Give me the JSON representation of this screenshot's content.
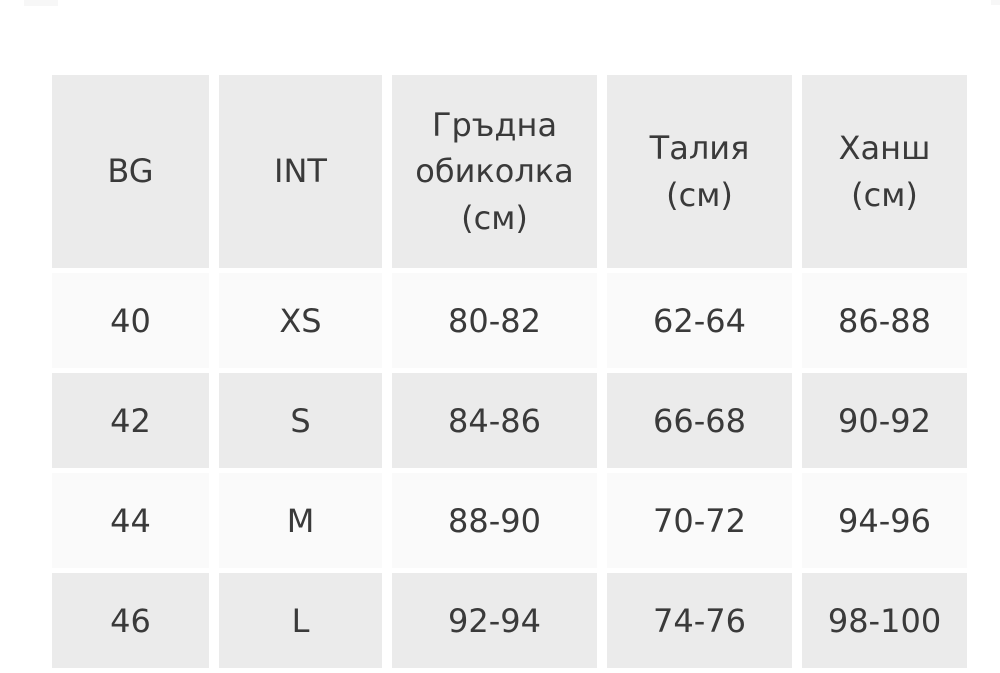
{
  "page": {
    "background_color": "#ffffff"
  },
  "size_chart": {
    "colors": {
      "header_bg": "#ebebeb",
      "row_light_bg": "#fafafa",
      "row_dark_bg": "#ebebeb",
      "gutter": "#ffffff",
      "text": "#3a3a3a"
    },
    "columns": [
      "BG",
      "INT",
      "Гръдна\nобиколка\n(см)",
      "Талия\n(см)",
      "Ханш\n(см)"
    ],
    "rows": [
      [
        "40",
        "XS",
        "80-82",
        "62-64",
        "86-88"
      ],
      [
        "42",
        "S",
        "84-86",
        "66-68",
        "90-92"
      ],
      [
        "44",
        "M",
        "88-90",
        "70-72",
        "94-96"
      ],
      [
        "46",
        "L",
        "92-94",
        "74-76",
        "98-100"
      ]
    ]
  }
}
